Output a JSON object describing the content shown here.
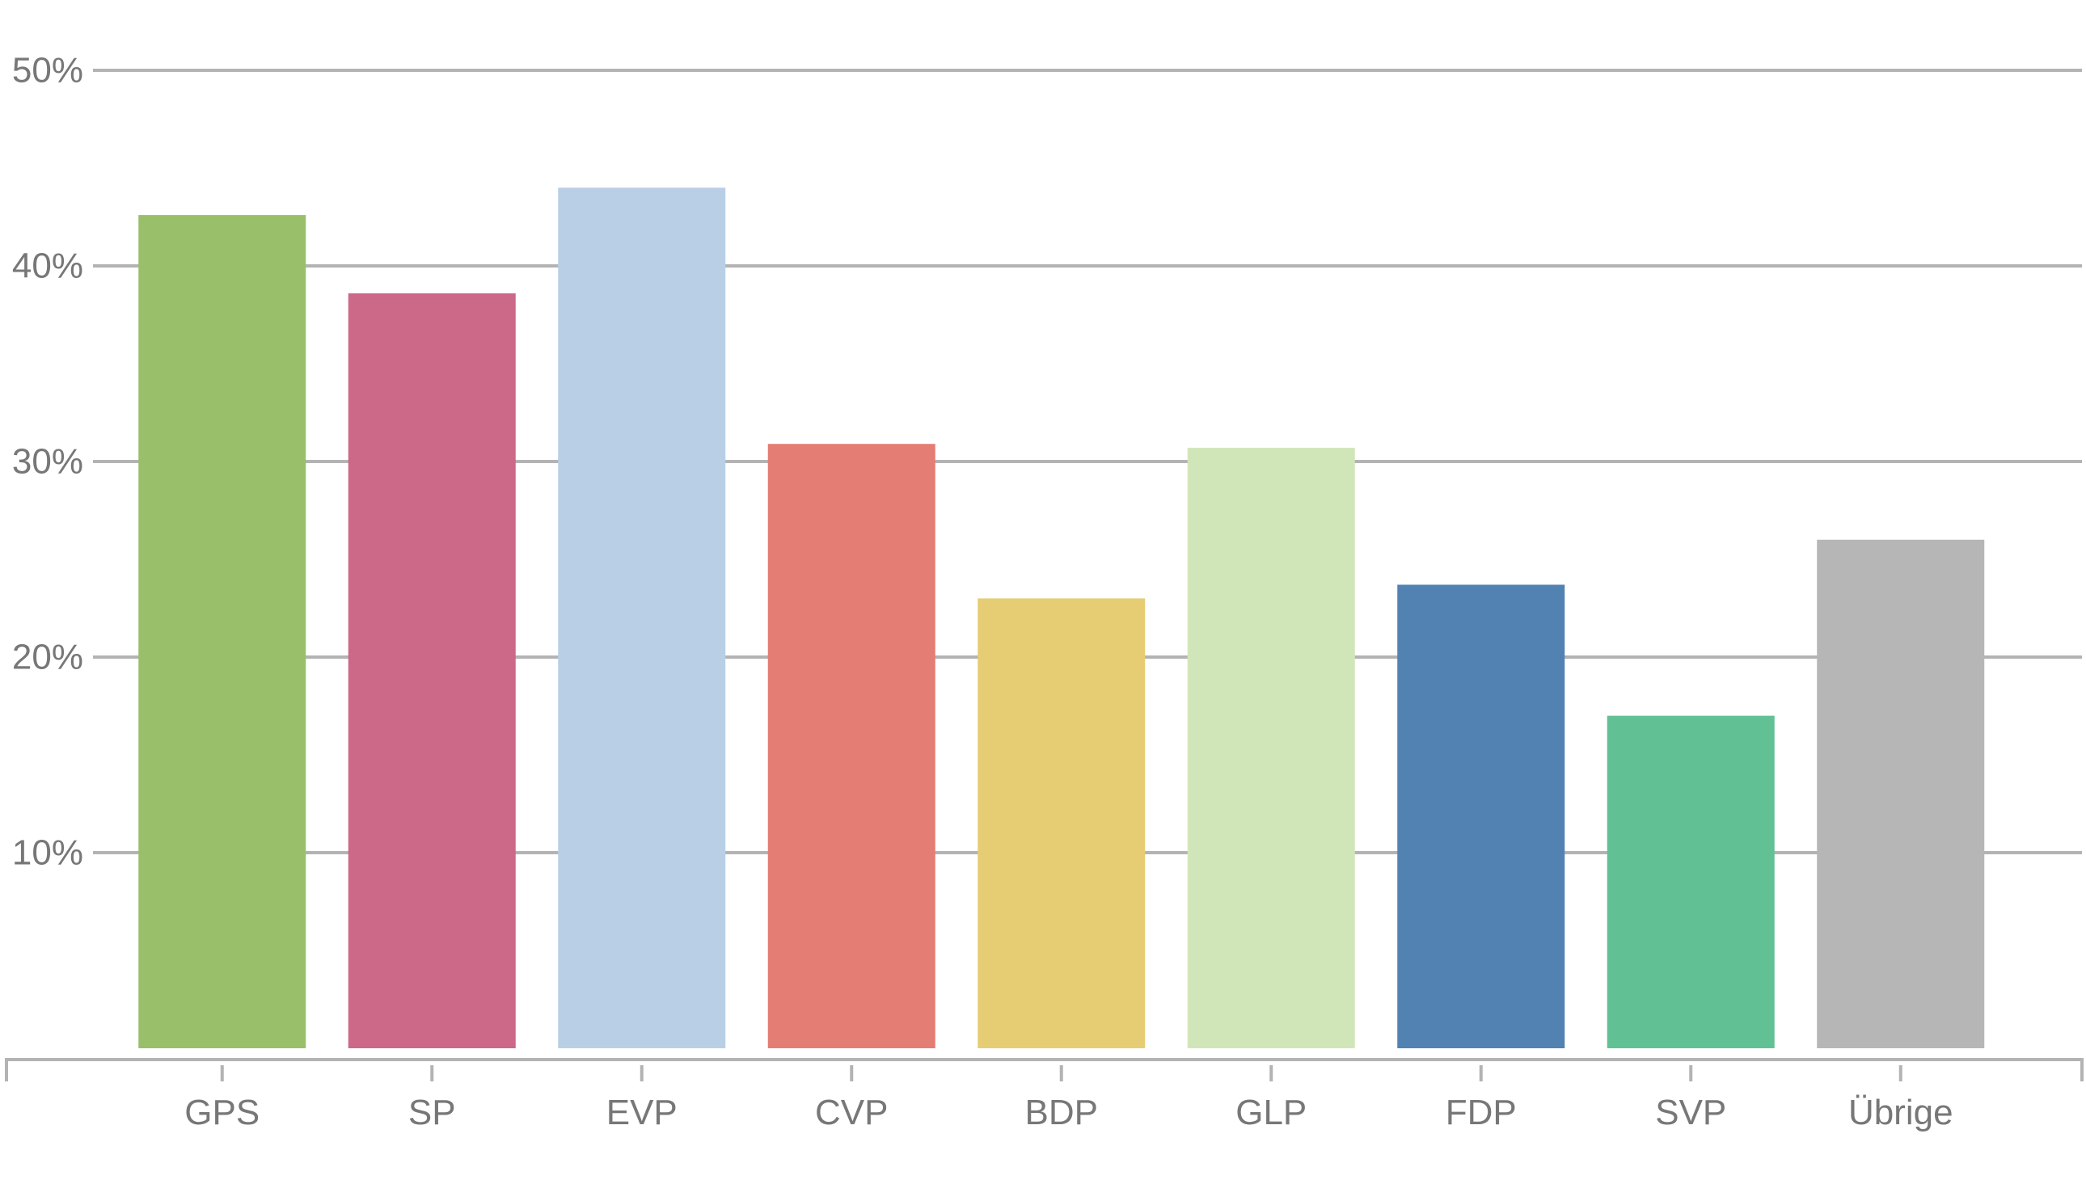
{
  "chart_data": {
    "type": "bar",
    "title": "",
    "xlabel": "",
    "ylabel": "",
    "categories": [
      "GPS",
      "SP",
      "EVP",
      "CVP",
      "BDP",
      "GLP",
      "FDP",
      "SVP",
      "Übrige"
    ],
    "values": [
      42.6,
      38.6,
      44.0,
      30.9,
      23.0,
      30.7,
      23.7,
      17.0,
      26.0
    ],
    "colors": [
      "#99bf6a",
      "#cc6888",
      "#b9cfe6",
      "#e47d74",
      "#e6cd74",
      "#d1e6b8",
      "#5282b2",
      "#62c095",
      "#b6b6b6"
    ],
    "ylim": [
      0,
      50
    ],
    "yticks": [
      10,
      20,
      30,
      40,
      50
    ],
    "ytick_labels": [
      "10%",
      "20%",
      "30%",
      "40%",
      "50%"
    ],
    "grid": true,
    "grid_color": "#b3b3b3",
    "axis_color": "#b3b3b3",
    "label_color": "#777777"
  }
}
